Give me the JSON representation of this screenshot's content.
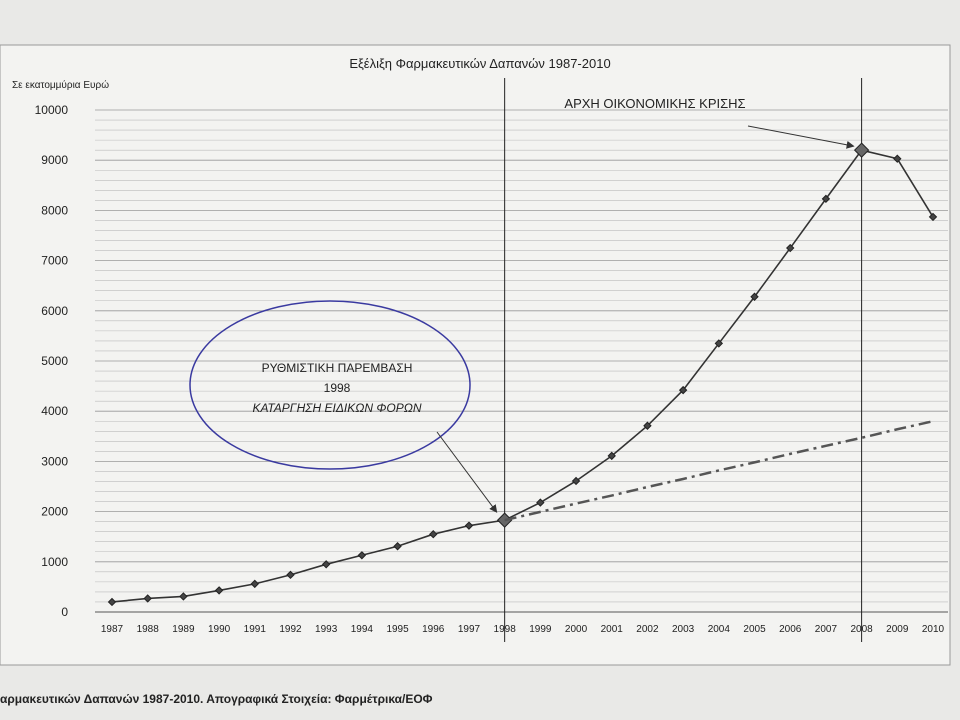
{
  "chart_data": {
    "type": "line",
    "title": "Εξέλιξη Φαρμακευτικών Δαπανών 1987-2010",
    "y_label": "Σε εκατομμύρια Ευρώ",
    "source": "αρμακευτικών Δαπανών 1987-2010. Απογραφικά Στοιχεία: Φαρμέτρικα/ΕΟΦ",
    "categories": [
      "1987",
      "1988",
      "1989",
      "1990",
      "1991",
      "1992",
      "1993",
      "1994",
      "1995",
      "1996",
      "1997",
      "1998",
      "1999",
      "2000",
      "2001",
      "2002",
      "2003",
      "2004",
      "2005",
      "2006",
      "2007",
      "2008",
      "2009",
      "2010"
    ],
    "series": [
      {
        "color": "#333333",
        "values": [
          200,
          270,
          310,
          430,
          560,
          740,
          950,
          1130,
          1310,
          1550,
          1720,
          1830,
          2180,
          2610,
          3110,
          3710,
          4420,
          5350,
          6280,
          7250,
          8230,
          9200,
          9030,
          7870
        ]
      },
      {
        "color": "#555555",
        "dash": "dashdot",
        "values": [
          null,
          null,
          null,
          null,
          null,
          null,
          null,
          null,
          null,
          null,
          null,
          1830,
          1995,
          2160,
          2320,
          2490,
          2650,
          2820,
          2980,
          3150,
          3310,
          3470,
          3640,
          3800
        ]
      }
    ],
    "ylim": [
      0,
      10000
    ],
    "yticks": [
      0,
      1000,
      2000,
      3000,
      4000,
      5000,
      6000,
      7000,
      8000,
      9000,
      10000
    ],
    "grid": true,
    "annotations": [
      {
        "category": "1998",
        "lines": [
          "ΡΥΘΜΙΣΤΙΚΗ ΠΑΡΕΜΒΑΣΗ",
          "1998",
          "ΚΑΤΑΡΓΗΣΗ ΕΙΔΙΚΩΝ ΦΟΡΩΝ"
        ]
      },
      {
        "category": "2008",
        "lines": [
          "ΑΡΧΗ ΟΙΚΟΝΟΜΙΚΗΣ ΚΡΙΣΗΣ"
        ]
      }
    ]
  }
}
